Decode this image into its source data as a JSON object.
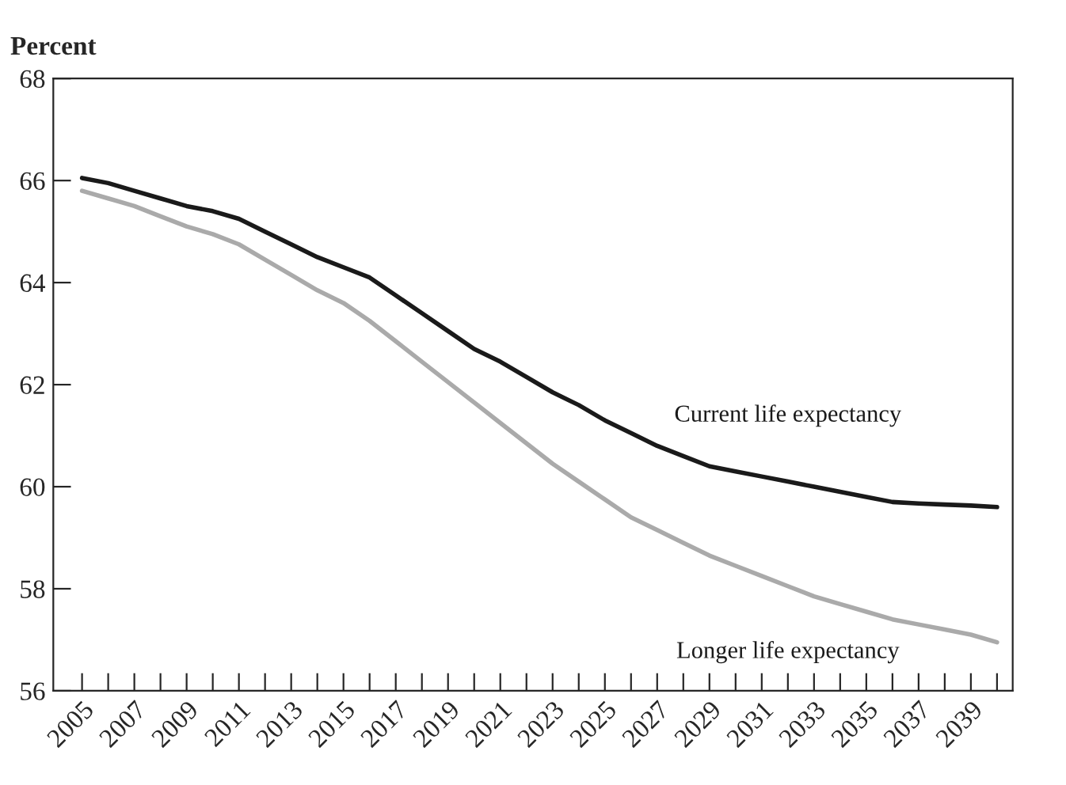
{
  "chart_data": {
    "type": "line",
    "ylabel": "Percent",
    "x": [
      2005,
      2006,
      2007,
      2008,
      2009,
      2010,
      2011,
      2012,
      2013,
      2014,
      2015,
      2016,
      2017,
      2018,
      2019,
      2020,
      2021,
      2022,
      2023,
      2024,
      2025,
      2026,
      2027,
      2028,
      2029,
      2030,
      2031,
      2032,
      2033,
      2034,
      2035,
      2036,
      2037,
      2038,
      2039,
      2040
    ],
    "series": [
      {
        "name": "Current life expectancy",
        "color": "#1a1a1a",
        "values": [
          66.05,
          65.95,
          65.8,
          65.65,
          65.5,
          65.4,
          65.25,
          65.0,
          64.75,
          64.5,
          64.3,
          64.1,
          63.75,
          63.4,
          63.05,
          62.7,
          62.45,
          62.15,
          61.85,
          61.6,
          61.3,
          61.05,
          60.8,
          60.6,
          60.4,
          60.3,
          60.2,
          60.1,
          60.0,
          59.9,
          59.8,
          59.7,
          59.67,
          59.65,
          59.63,
          59.6
        ]
      },
      {
        "name": "Longer life expectancy",
        "color": "#aaaaaa",
        "values": [
          65.8,
          65.65,
          65.5,
          65.3,
          65.1,
          64.95,
          64.75,
          64.45,
          64.15,
          63.85,
          63.6,
          63.25,
          62.85,
          62.45,
          62.05,
          61.65,
          61.25,
          60.85,
          60.45,
          60.1,
          59.75,
          59.4,
          59.15,
          58.9,
          58.65,
          58.45,
          58.25,
          58.05,
          57.85,
          57.7,
          57.55,
          57.4,
          57.3,
          57.2,
          57.1,
          56.95
        ]
      }
    ],
    "xlim": [
      2003.9,
      2040.6
    ],
    "ylim": [
      56,
      68
    ],
    "yticks": [
      56,
      58,
      60,
      62,
      64,
      66,
      68
    ],
    "xticks": [
      2005,
      {
        "value": 2006,
        "label": null
      },
      2007,
      {
        "value": 2008,
        "label": null
      },
      2009,
      {
        "value": 2010,
        "label": null
      },
      2011,
      {
        "value": 2012,
        "label": null
      },
      2013,
      {
        "value": 2014,
        "label": null
      },
      2015,
      {
        "value": 2016,
        "label": null
      },
      2017,
      {
        "value": 2018,
        "label": null
      },
      2019,
      {
        "value": 2020,
        "label": null
      },
      2021,
      {
        "value": 2022,
        "label": null
      },
      2023,
      {
        "value": 2024,
        "label": null
      },
      2025,
      {
        "value": 2026,
        "label": null
      },
      2027,
      {
        "value": 2028,
        "label": null
      },
      2029,
      {
        "value": 2030,
        "label": null
      },
      2031,
      {
        "value": 2032,
        "label": null
      },
      2033,
      {
        "value": 2034,
        "label": null
      },
      2035,
      {
        "value": 2036,
        "label": null
      },
      2037,
      {
        "value": 2038,
        "label": null
      },
      2039,
      {
        "value": 2040,
        "label": null
      }
    ],
    "grid": false,
    "legend": false,
    "marker": "none",
    "line_style": "solid"
  }
}
